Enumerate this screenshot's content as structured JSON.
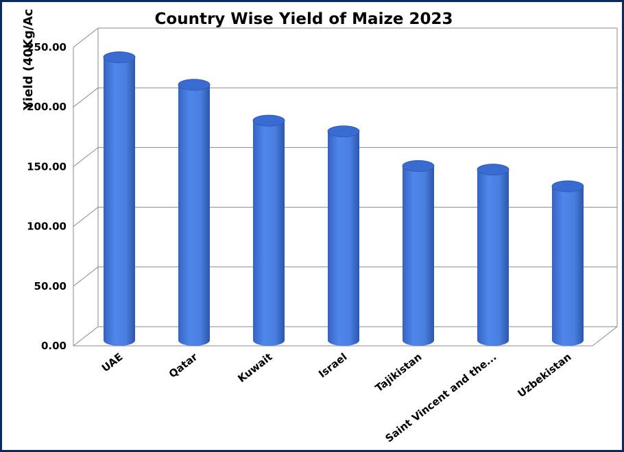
{
  "chart_data": {
    "type": "bar",
    "style": "3d-cylinder",
    "title": "Country Wise Yield of Maize 2023",
    "ylabel": "Yield (40Kg/Ac",
    "xlabel": "",
    "categories": [
      "UAE",
      "Qatar",
      "Kuwait",
      "Israel",
      "Tajikistan",
      "Saint Vincent and the...",
      "Uzbekistan"
    ],
    "values": [
      237,
      214,
      184,
      175,
      146,
      143,
      129
    ],
    "ylim": [
      0,
      250
    ],
    "yticks": [
      "0.00",
      "50.00",
      "100.00",
      "150.00",
      "200.00",
      "250.00"
    ],
    "grid": true,
    "legend": "none",
    "colors": {
      "bar": "#4a7fe0",
      "bar_dark": "#2f5cb8",
      "bar_top": "#3a6bd0",
      "frame": "#0b2a5c"
    }
  }
}
